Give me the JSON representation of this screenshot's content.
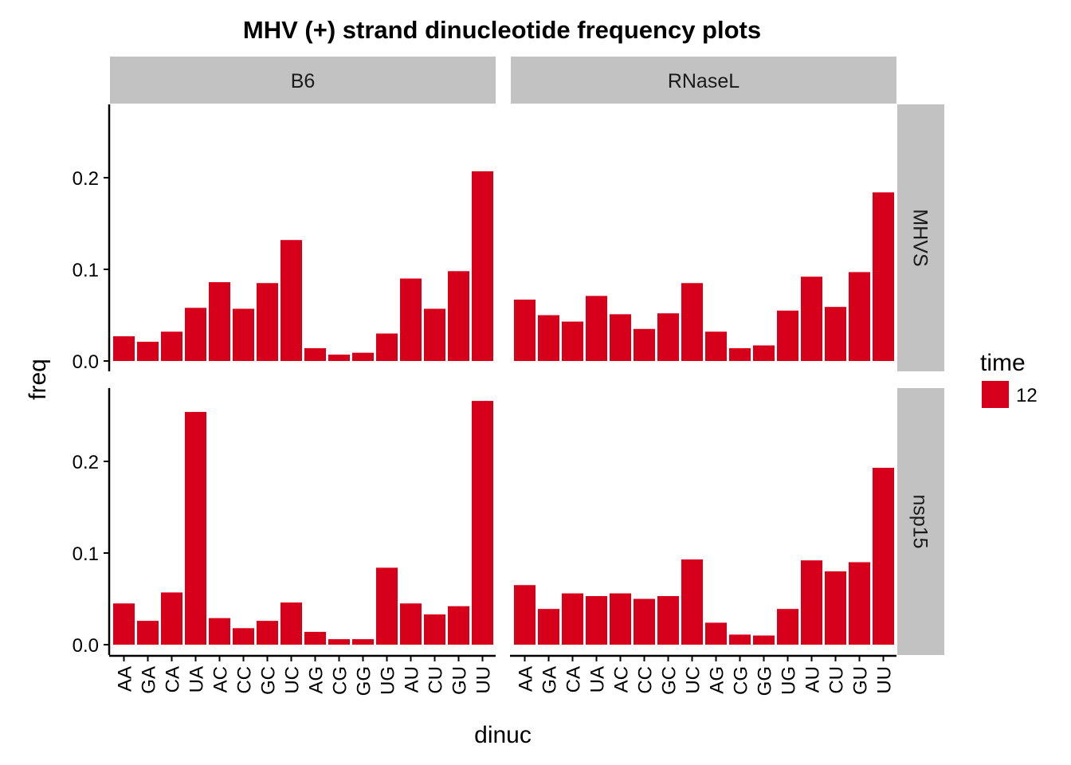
{
  "chart_data": {
    "type": "bar",
    "title": "MHV (+) strand dinucleotide frequency plots",
    "xlabel": "dinuc",
    "ylabel": "freq",
    "categories": [
      "AA",
      "GA",
      "CA",
      "UA",
      "AC",
      "CC",
      "GC",
      "UC",
      "AG",
      "CG",
      "GG",
      "UG",
      "AU",
      "CU",
      "GU",
      "UU"
    ],
    "yticks": [
      "0.0",
      "0.1",
      "0.2"
    ],
    "ylim": [
      0,
      0.28
    ],
    "column_facets": [
      "B6",
      "RNaseL"
    ],
    "row_facets": [
      "MHVS",
      "nsp15"
    ],
    "legend": {
      "title": "time",
      "label": "12",
      "color": "#d7001a",
      "position": "right"
    },
    "panels": [
      {
        "column": "B6",
        "row": "MHVS",
        "values": [
          0.027,
          0.021,
          0.032,
          0.058,
          0.086,
          0.057,
          0.085,
          0.132,
          0.014,
          0.007,
          0.009,
          0.03,
          0.09,
          0.057,
          0.098,
          0.207
        ]
      },
      {
        "column": "RNaseL",
        "row": "MHVS",
        "values": [
          0.067,
          0.05,
          0.043,
          0.071,
          0.051,
          0.035,
          0.052,
          0.085,
          0.032,
          0.014,
          0.017,
          0.055,
          0.092,
          0.059,
          0.097,
          0.184
        ]
      },
      {
        "column": "B6",
        "row": "nsp15",
        "values": [
          0.045,
          0.026,
          0.057,
          0.254,
          0.029,
          0.018,
          0.026,
          0.046,
          0.014,
          0.006,
          0.006,
          0.084,
          0.045,
          0.033,
          0.042,
          0.266
        ]
      },
      {
        "column": "RNaseL",
        "row": "nsp15",
        "values": [
          0.065,
          0.039,
          0.056,
          0.053,
          0.056,
          0.05,
          0.053,
          0.093,
          0.024,
          0.011,
          0.01,
          0.039,
          0.092,
          0.08,
          0.09,
          0.193
        ]
      }
    ]
  }
}
